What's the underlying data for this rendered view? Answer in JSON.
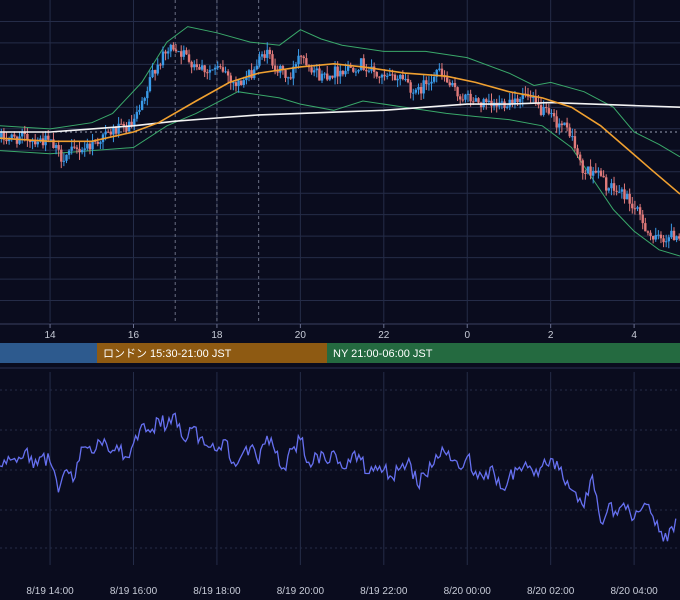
{
  "colors": {
    "background": "#0a0c1e",
    "grid": "#252c48",
    "candle_up": "#3a9ae8",
    "candle_down": "#e07a7a",
    "bollinger": "#3aa86a",
    "ma_short": "#f0a030",
    "ma_long": "#f4f4f4",
    "oscillator": "#6670f0",
    "session_tokyo": "#2d5a8e",
    "session_london": "#8e5a12",
    "session_ny": "#246a40"
  },
  "sessions": [
    {
      "label": "",
      "color": "#2d5a8e"
    },
    {
      "label": "ロンドン 15:30-21:00 JST",
      "color": "#8e5a12"
    },
    {
      "label": "NY 21:00-06:00 JST",
      "color": "#246a40"
    }
  ],
  "chart_data": [
    {
      "type": "candlestick",
      "title": "",
      "x_unit": "hour (JST)",
      "x_range": [
        12.8,
        29.1
      ],
      "y_range": [
        0,
        100
      ],
      "y_axis_labels": "hidden",
      "grid": true,
      "price_line_y": 60,
      "x_ticks": [
        "14",
        "16",
        "18",
        "20",
        "22",
        "0",
        "2",
        "4"
      ],
      "x_tick_values": [
        14,
        16,
        18,
        20,
        22,
        24,
        26,
        28
      ],
      "session_markers_x": [
        17.0,
        18.0,
        19.0
      ],
      "series_path": [
        [
          12.8,
          58
        ],
        [
          13.5,
          58
        ],
        [
          14.0,
          57
        ],
        [
          14.3,
          52
        ],
        [
          15.0,
          56
        ],
        [
          15.5,
          60
        ],
        [
          16.0,
          62
        ],
        [
          16.3,
          70
        ],
        [
          16.5,
          80
        ],
        [
          16.8,
          85
        ],
        [
          17.0,
          88
        ],
        [
          17.4,
          83
        ],
        [
          17.8,
          80
        ],
        [
          18.2,
          80
        ],
        [
          18.5,
          75
        ],
        [
          18.8,
          78
        ],
        [
          19.2,
          86
        ],
        [
          19.5,
          80
        ],
        [
          19.8,
          77
        ],
        [
          20.0,
          86
        ],
        [
          20.5,
          78
        ],
        [
          21.0,
          80
        ],
        [
          21.5,
          82
        ],
        [
          22.0,
          77
        ],
        [
          22.5,
          78
        ],
        [
          22.8,
          72
        ],
        [
          23.3,
          80
        ],
        [
          23.8,
          72
        ],
        [
          24.2,
          70
        ],
        [
          24.6,
          68
        ],
        [
          25.0,
          70
        ],
        [
          25.4,
          72
        ],
        [
          25.8,
          67
        ],
        [
          26.2,
          63
        ],
        [
          26.5,
          60
        ],
        [
          26.8,
          47
        ],
        [
          27.1,
          48
        ],
        [
          27.4,
          42
        ],
        [
          27.8,
          40
        ],
        [
          28.2,
          32
        ],
        [
          28.5,
          25
        ],
        [
          28.8,
          26
        ],
        [
          29.1,
          27
        ]
      ],
      "ma_short": [
        [
          12.8,
          58
        ],
        [
          14.0,
          57
        ],
        [
          15.0,
          57
        ],
        [
          16.0,
          60
        ],
        [
          16.6,
          63
        ],
        [
          17.5,
          70
        ],
        [
          18.3,
          76
        ],
        [
          19.0,
          79
        ],
        [
          20.0,
          81
        ],
        [
          20.8,
          82
        ],
        [
          21.5,
          81
        ],
        [
          22.5,
          79
        ],
        [
          23.5,
          78
        ],
        [
          24.2,
          76
        ],
        [
          25.0,
          73
        ],
        [
          25.8,
          71
        ],
        [
          26.5,
          68
        ],
        [
          27.2,
          62
        ],
        [
          27.8,
          55
        ],
        [
          28.4,
          48
        ],
        [
          29.1,
          40
        ]
      ],
      "ma_long": [
        [
          12.8,
          60
        ],
        [
          14.0,
          60
        ],
        [
          15.0,
          61
        ],
        [
          16.0,
          62
        ],
        [
          17.0,
          63.5
        ],
        [
          18.0,
          64.5
        ],
        [
          19.0,
          65.5
        ],
        [
          20.0,
          66
        ],
        [
          21.0,
          66.5
        ],
        [
          22.0,
          67
        ],
        [
          23.0,
          68
        ],
        [
          24.0,
          69
        ],
        [
          25.0,
          69
        ],
        [
          26.0,
          69.5
        ],
        [
          27.0,
          69
        ],
        [
          28.0,
          68.5
        ],
        [
          29.1,
          68
        ]
      ],
      "bollinger_upper": [
        [
          12.8,
          62
        ],
        [
          14.0,
          61
        ],
        [
          15.0,
          63
        ],
        [
          15.5,
          66
        ],
        [
          16.2,
          76
        ],
        [
          16.8,
          89
        ],
        [
          17.3,
          94
        ],
        [
          18.0,
          92
        ],
        [
          18.8,
          89
        ],
        [
          19.5,
          88
        ],
        [
          20.0,
          93
        ],
        [
          20.5,
          90
        ],
        [
          21.0,
          88
        ],
        [
          22.0,
          86
        ],
        [
          23.0,
          86
        ],
        [
          24.0,
          84
        ],
        [
          25.0,
          79
        ],
        [
          25.6,
          75
        ],
        [
          26.0,
          76
        ],
        [
          26.8,
          73
        ],
        [
          27.5,
          68
        ],
        [
          28.0,
          60
        ],
        [
          28.6,
          56
        ],
        [
          29.1,
          52
        ]
      ],
      "bollinger_lower": [
        [
          12.8,
          54
        ],
        [
          14.0,
          53
        ],
        [
          15.0,
          54
        ],
        [
          16.0,
          55
        ],
        [
          16.8,
          62
        ],
        [
          17.5,
          66
        ],
        [
          18.5,
          73
        ],
        [
          19.5,
          71
        ],
        [
          20.0,
          69
        ],
        [
          20.8,
          67
        ],
        [
          21.5,
          70
        ],
        [
          22.5,
          68
        ],
        [
          23.5,
          66
        ],
        [
          24.2,
          65
        ],
        [
          25.0,
          64
        ],
        [
          25.8,
          62
        ],
        [
          26.5,
          55
        ],
        [
          27.0,
          45
        ],
        [
          27.5,
          35
        ],
        [
          28.0,
          28
        ],
        [
          28.6,
          22
        ],
        [
          29.1,
          20
        ]
      ]
    },
    {
      "type": "line",
      "title": "",
      "y_range": [
        0,
        100
      ],
      "y_axis_labels": "hidden",
      "grid": true,
      "x_ticks": [
        "8/19 14:00",
        "8/19 16:00",
        "8/19 18:00",
        "8/19 20:00",
        "8/19 22:00",
        "8/20 00:00",
        "8/20 02:00",
        "8/20 04:00"
      ],
      "x_tick_values": [
        14,
        16,
        18,
        20,
        22,
        24,
        26,
        28
      ],
      "series": [
        {
          "name": "",
          "x": [
            12.8,
            13.0,
            13.2,
            13.4,
            13.6,
            13.8,
            14.0,
            14.2,
            14.4,
            14.6,
            14.8,
            15.0,
            15.2,
            15.4,
            15.6,
            15.8,
            16.0,
            16.2,
            16.4,
            16.6,
            16.8,
            17.0,
            17.2,
            17.4,
            17.6,
            17.8,
            18.0,
            18.2,
            18.4,
            18.6,
            18.8,
            19.0,
            19.2,
            19.4,
            19.6,
            19.8,
            20.0,
            20.2,
            20.4,
            20.6,
            20.8,
            21.0,
            21.2,
            21.4,
            21.6,
            21.8,
            22.0,
            22.2,
            22.4,
            22.6,
            22.8,
            23.0,
            23.2,
            23.4,
            23.6,
            23.8,
            24.0,
            24.2,
            24.4,
            24.6,
            24.8,
            25.0,
            25.2,
            25.4,
            25.6,
            25.8,
            26.0,
            26.2,
            26.4,
            26.6,
            26.8,
            27.0,
            27.2,
            27.4,
            27.6,
            27.8,
            28.0,
            28.2,
            28.4,
            28.6,
            28.8,
            29.0
          ],
          "values": [
            50,
            55,
            52,
            58,
            49,
            55,
            52,
            36,
            48,
            44,
            60,
            57,
            63,
            58,
            61,
            55,
            62,
            72,
            68,
            75,
            71,
            78,
            64,
            70,
            65,
            60,
            58,
            64,
            52,
            56,
            60,
            51,
            66,
            57,
            49,
            59,
            64,
            52,
            56,
            53,
            58,
            49,
            52,
            56,
            46,
            50,
            48,
            44,
            49,
            54,
            40,
            45,
            51,
            60,
            53,
            49,
            55,
            47,
            43,
            50,
            38,
            44,
            48,
            52,
            45,
            50,
            54,
            48,
            42,
            36,
            28,
            45,
            20,
            30,
            24,
            27,
            22,
            28,
            25,
            15,
            10,
            22
          ]
        }
      ]
    }
  ]
}
